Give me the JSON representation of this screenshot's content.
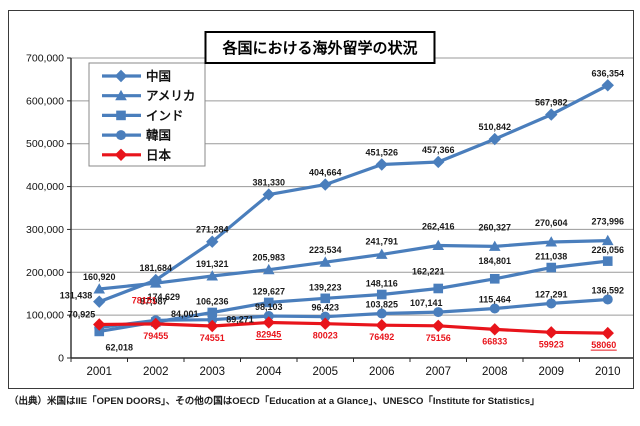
{
  "chart_data": {
    "type": "line",
    "title": "各国における海外留学の状況",
    "categories": [
      "2001",
      "2002",
      "2003",
      "2004",
      "2005",
      "2006",
      "2007",
      "2008",
      "2009",
      "2010"
    ],
    "ylim": [
      0,
      700000
    ],
    "ytick_step": 100000,
    "ytick_labels": [
      "0",
      "100,000",
      "200,000",
      "300,000",
      "400,000",
      "500,000",
      "600,000",
      "700,000"
    ],
    "grid": true,
    "legend_position": "top-left",
    "series": [
      {
        "name": "中国",
        "marker": "diamond",
        "color": "#4a7ebc",
        "label_color": "#1a1a1a",
        "label_format": "comma",
        "values": [
          131438,
          181684,
          271284,
          381330,
          404664,
          451526,
          457366,
          510842,
          567982,
          636354
        ]
      },
      {
        "name": "アメリカ",
        "marker": "triangle",
        "color": "#4a7ebc",
        "label_color": "#1a1a1a",
        "label_format": "comma",
        "values": [
          160920,
          174629,
          191321,
          205983,
          223534,
          241791,
          262416,
          260327,
          270604,
          273996
        ]
      },
      {
        "name": "インド",
        "marker": "square",
        "color": "#4a7ebc",
        "label_color": "#1a1a1a",
        "label_format": "comma",
        "values": [
          62018,
          84001,
          106236,
          129627,
          139223,
          148116,
          162221,
          184801,
          211038,
          226056
        ]
      },
      {
        "name": "韓国",
        "marker": "circle",
        "color": "#4a7ebc",
        "label_color": "#1a1a1a",
        "label_format": "comma",
        "values": [
          70925,
          87987,
          89271,
          98103,
          96423,
          103825,
          107141,
          115464,
          127291,
          136592
        ]
      },
      {
        "name": "日本",
        "marker": "diamond",
        "color": "#e8141b",
        "label_color": "#e8141b",
        "label_format": "plain",
        "underline_points": [
          3,
          9
        ],
        "values": [
          78151,
          79455,
          74551,
          82945,
          80023,
          76492,
          75156,
          66833,
          59923,
          58060
        ]
      }
    ]
  },
  "footer": "（出典）米国はIIE「OPEN DOORS」、その他の国はOECD「Education at a Glance」、UNESCO「Institute for Statistics」"
}
